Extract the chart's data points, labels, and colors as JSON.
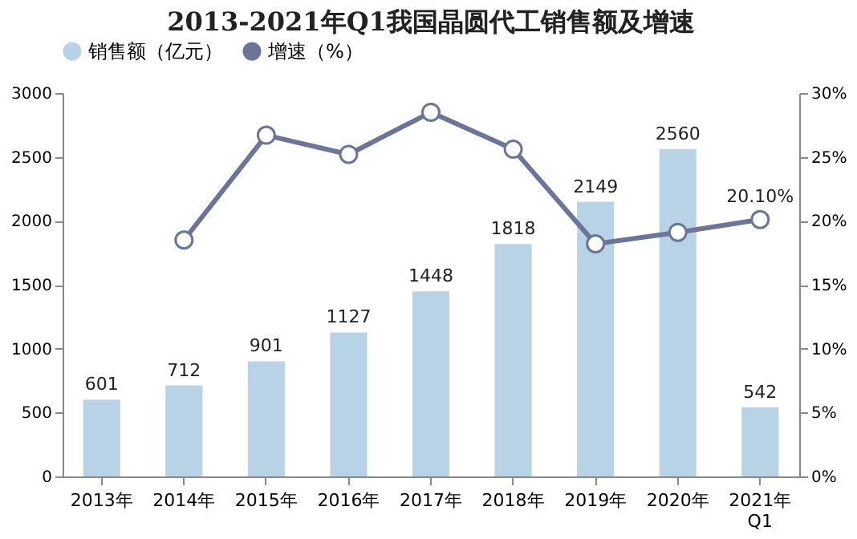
{
  "chart_data": {
    "type": "bar",
    "title": "2013-2021年Q1我国晶圆代工销售额及增速",
    "categories": [
      "2013年",
      "2014年",
      "2015年",
      "2016年",
      "2017年",
      "2018年",
      "2019年",
      "2020年",
      "2021年\nQ1"
    ],
    "series": [
      {
        "name": "销售额（亿元）",
        "color": "#b8d3e6",
        "values": [
          601,
          712,
          901,
          1127,
          1448,
          1818,
          2149,
          2560,
          542
        ],
        "value_labels": [
          "601",
          "712",
          "901",
          "1127",
          "1448",
          "1818",
          "2149",
          "2560",
          "542"
        ]
      },
      {
        "name": "增速（%）",
        "type": "line",
        "axis": "y2",
        "color": "#6b7499",
        "values": [
          null,
          18.5,
          26.7,
          25.2,
          28.5,
          25.6,
          18.2,
          19.1,
          20.1
        ],
        "value_labels": [
          null,
          null,
          null,
          null,
          null,
          null,
          null,
          null,
          "20.10%"
        ]
      }
    ],
    "ylim": [
      0,
      3000
    ],
    "yticks": [
      0,
      500,
      1000,
      1500,
      2000,
      2500,
      3000
    ],
    "y2lim": [
      0,
      30
    ],
    "y2ticks": [
      {
        "value": 0,
        "label": "0%"
      },
      {
        "value": 5,
        "label": "5%"
      },
      {
        "value": 10,
        "label": "10%"
      },
      {
        "value": 15,
        "label": "15%"
      },
      {
        "value": 20,
        "label": "20%"
      },
      {
        "value": 25,
        "label": "25%"
      },
      {
        "value": 30,
        "label": "30%"
      }
    ],
    "legend": "top",
    "grid": false,
    "marker": "circle",
    "line_style": "solid"
  }
}
